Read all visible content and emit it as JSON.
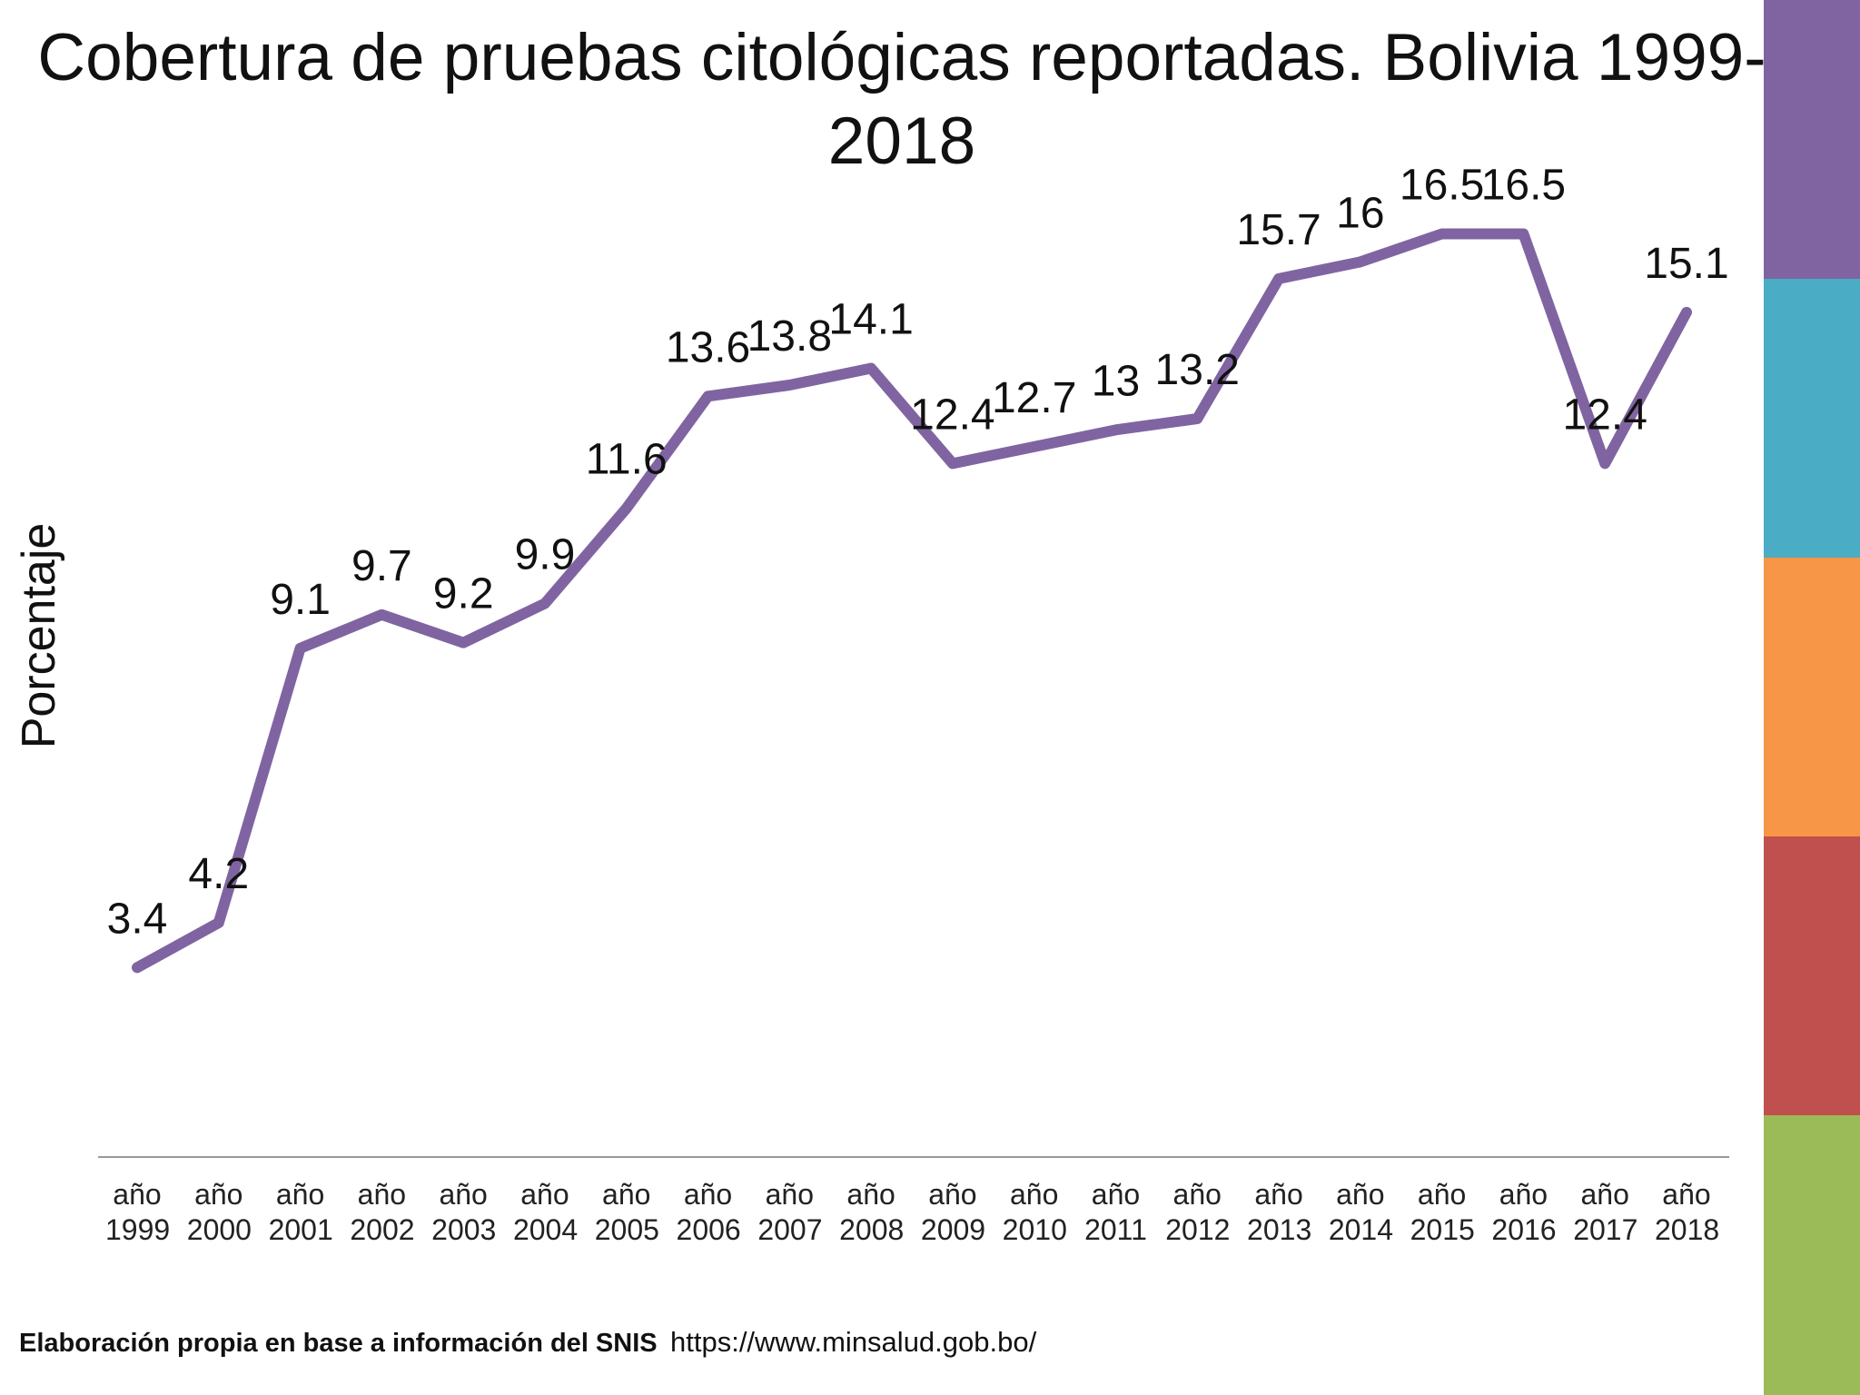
{
  "chart_data": {
    "type": "line",
    "title": "Cobertura de pruebas citológicas reportadas. Bolivia 1999-2018",
    "y_label": "Porcentaje",
    "categories": [
      "año 1999",
      "año 2000",
      "año 2001",
      "año 2002",
      "año 2003",
      "año 2004",
      "año 2005",
      "año 2006",
      "año 2007",
      "año 2008",
      "año 2009",
      "año 2010",
      "año 2011",
      "año 2012",
      "año 2013",
      "año 2014",
      "año 2015",
      "año 2016",
      "año 2017",
      "año 2018"
    ],
    "values": [
      3.4,
      4.2,
      9.1,
      9.7,
      9.2,
      9.9,
      11.6,
      13.6,
      13.8,
      14.1,
      12.4,
      12.7,
      13,
      13.2,
      15.7,
      16,
      16.5,
      16.5,
      12.4,
      15.1
    ],
    "color": "#8064a2",
    "ylim": [
      0,
      18
    ],
    "source": "Elaboración propia en base a información del SNIS",
    "url": "https://www.minsalud.gob.bo/"
  }
}
